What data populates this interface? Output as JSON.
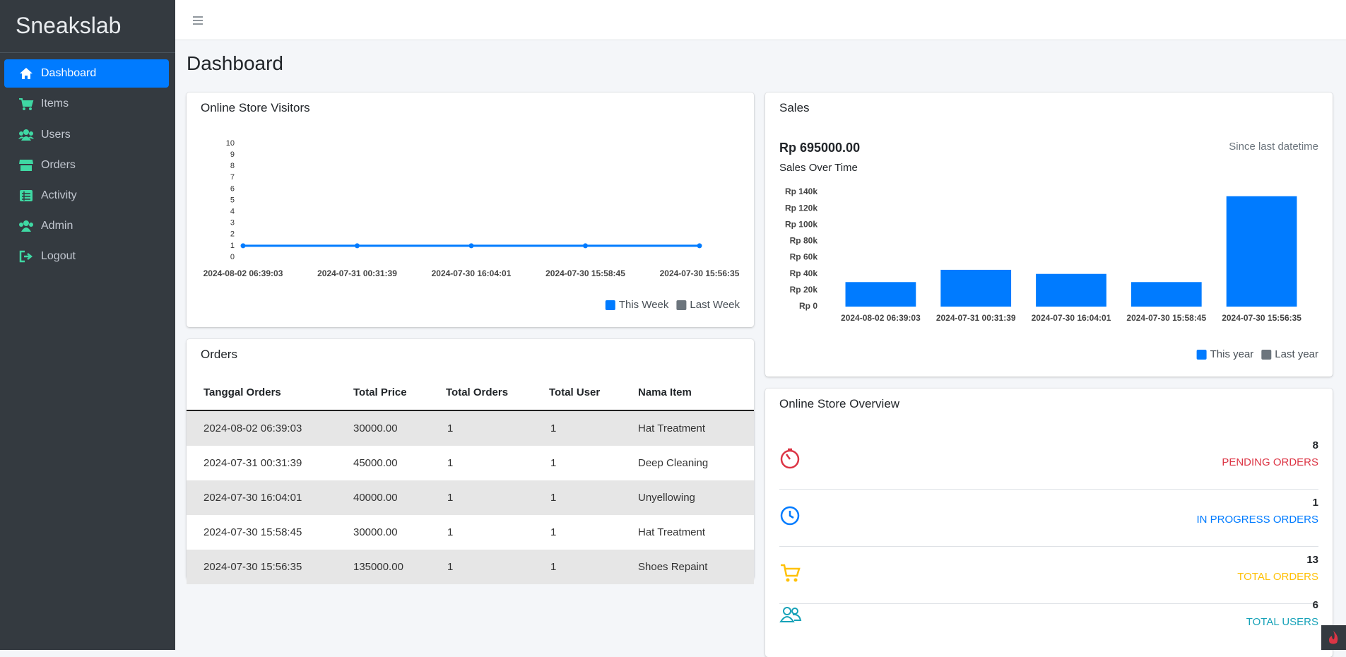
{
  "sidebar": {
    "brand": "Sneakslab",
    "nav": [
      "Dashboard",
      "Items",
      "Users",
      "Orders",
      "Activity",
      "Admin",
      "Logout"
    ]
  },
  "page_title": "Dashboard",
  "chart_data": [
    {
      "type": "line",
      "title": "Online Store Visitors",
      "categories": [
        "2024-08-02 06:39:03",
        "2024-07-31 00:31:39",
        "2024-07-30 16:04:01",
        "2024-07-30 15:58:45",
        "2024-07-30 15:56:35"
      ],
      "series": [
        {
          "name": "This Week",
          "color": "#007bff",
          "values": [
            1,
            1,
            1,
            1,
            1
          ]
        },
        {
          "name": "Last Week",
          "color": "#6c757d",
          "values": [
            null,
            null,
            null,
            null,
            null
          ]
        }
      ],
      "ylim": [
        0,
        10
      ],
      "yticks": [
        0,
        1,
        2,
        3,
        4,
        5,
        6,
        7,
        8,
        9,
        10
      ],
      "grid": false,
      "legend": "bottom-right"
    },
    {
      "type": "bar",
      "title": "Sales",
      "annotations": [
        "Rp 695000.00",
        "Since last datetime"
      ],
      "subtitle": "Sales Over Time",
      "categories": [
        "2024-08-02 06:39:03",
        "2024-07-31 00:31:39",
        "2024-07-30 16:04:01",
        "2024-07-30 15:58:45",
        "2024-07-30 15:56:35"
      ],
      "series": [
        {
          "name": "This year",
          "color": "#007bff",
          "values": [
            30000,
            45000,
            40000,
            30000,
            135000
          ]
        },
        {
          "name": "Last year",
          "color": "#6c757d",
          "values": [
            null,
            null,
            null,
            null,
            null
          ]
        }
      ],
      "ylim": [
        0,
        140000
      ],
      "yticks": [
        {
          "value": 0,
          "label": "Rp 0"
        },
        {
          "value": 20000,
          "label": "Rp 20k"
        },
        {
          "value": 40000,
          "label": "Rp 40k"
        },
        {
          "value": 60000,
          "label": "Rp 60k"
        },
        {
          "value": 80000,
          "label": "Rp 80k"
        },
        {
          "value": 100000,
          "label": "Rp 100k"
        },
        {
          "value": 120000,
          "label": "Rp 120k"
        },
        {
          "value": 140000,
          "label": "Rp 140k"
        }
      ],
      "grid": false,
      "legend": "bottom-right"
    }
  ],
  "orders": {
    "title": "Orders",
    "columns": [
      "Tanggal Orders",
      "Total Price",
      "Total Orders",
      "Total User",
      "Nama Item"
    ],
    "rows": [
      [
        "2024-08-02 06:39:03",
        "30000.00",
        "1",
        "1",
        "Hat Treatment"
      ],
      [
        "2024-07-31 00:31:39",
        "45000.00",
        "1",
        "1",
        "Deep Cleaning"
      ],
      [
        "2024-07-30 16:04:01",
        "40000.00",
        "1",
        "1",
        "Unyellowing"
      ],
      [
        "2024-07-30 15:58:45",
        "30000.00",
        "1",
        "1",
        "Hat Treatment"
      ],
      [
        "2024-07-30 15:56:35",
        "135000.00",
        "1",
        "1",
        "Shoes Repaint"
      ]
    ]
  },
  "overview": {
    "title": "Online Store Overview",
    "items": [
      {
        "value": 8,
        "label": "PENDING ORDERS"
      },
      {
        "value": 1,
        "label": "IN PROGRESS ORDERS"
      },
      {
        "value": 13,
        "label": "TOTAL ORDERS"
      },
      {
        "value": 6,
        "label": "TOTAL USERS"
      }
    ]
  }
}
